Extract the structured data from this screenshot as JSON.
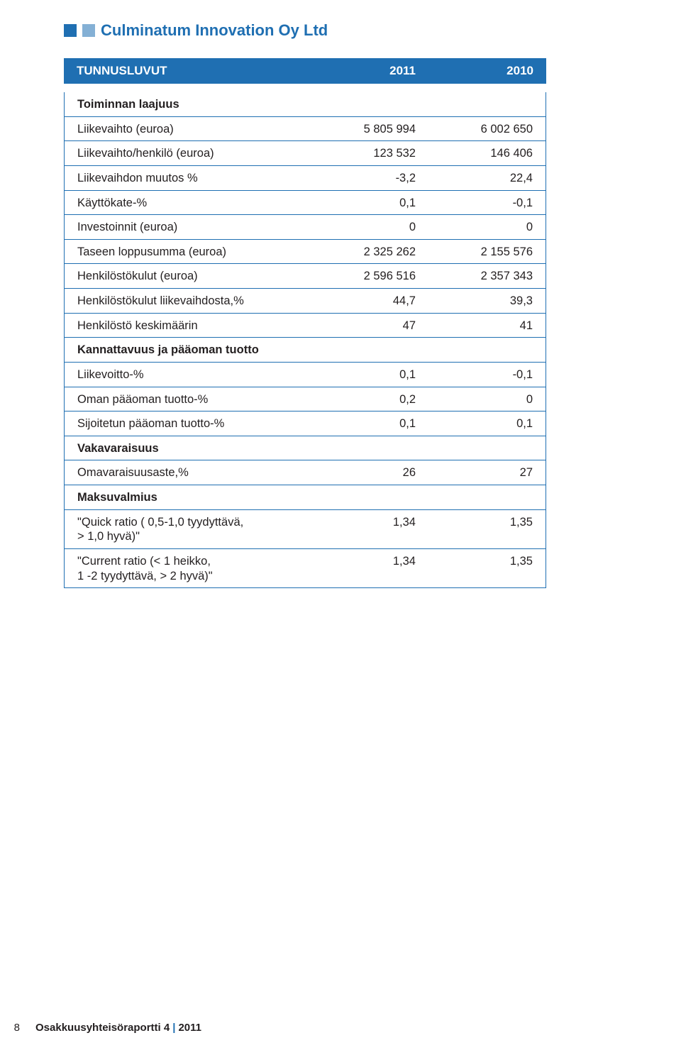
{
  "colors": {
    "brand_blue": "#1f6fb2",
    "text": "#231f20",
    "white": "#ffffff"
  },
  "title": "Culminatum Innovation Oy Ltd",
  "table": {
    "header": {
      "c0": "TUNNUSLUVUT",
      "c1": "2011",
      "c2": "2010"
    },
    "rows": [
      {
        "type": "section",
        "label": "Toiminnan laajuus"
      },
      {
        "type": "data",
        "label": "Liikevaihto (euroa)",
        "v1": "5 805 994",
        "v2": "6 002 650"
      },
      {
        "type": "data",
        "label": "Liikevaihto/henkilö (euroa)",
        "v1": "123 532",
        "v2": "146 406"
      },
      {
        "type": "data",
        "label": "Liikevaihdon muutos %",
        "v1": "-3,2",
        "v2": "22,4"
      },
      {
        "type": "data",
        "label": "Käyttökate-%",
        "v1": "0,1",
        "v2": "-0,1"
      },
      {
        "type": "data",
        "label": "Investoinnit (euroa)",
        "v1": "0",
        "v2": "0"
      },
      {
        "type": "data",
        "label": "Taseen loppusumma (euroa)",
        "v1": "2 325 262",
        "v2": "2 155 576"
      },
      {
        "type": "data",
        "label": "Henkilöstökulut (euroa)",
        "v1": "2 596 516",
        "v2": "2  357 343"
      },
      {
        "type": "data",
        "label": "Henkilöstökulut liikevaihdosta,%",
        "v1": "44,7",
        "v2": "39,3"
      },
      {
        "type": "data",
        "label": "Henkilöstö keskimäärin",
        "v1": "47",
        "v2": "41"
      },
      {
        "type": "section",
        "label": "Kannattavuus ja pääoman tuotto"
      },
      {
        "type": "data",
        "label": "Liikevoitto-%",
        "v1": "0,1",
        "v2": "-0,1"
      },
      {
        "type": "data",
        "label": "Oman pääoman tuotto-%",
        "v1": "0,2",
        "v2": "0"
      },
      {
        "type": "data",
        "label": "Sijoitetun pääoman tuotto-%",
        "v1": "0,1",
        "v2": "0,1"
      },
      {
        "type": "section",
        "label": "Vakavaraisuus"
      },
      {
        "type": "data",
        "label": "Omavaraisuusaste,%",
        "v1": "26",
        "v2": "27"
      },
      {
        "type": "section",
        "label": "Maksuvalmius"
      },
      {
        "type": "data",
        "label": "\"Quick ratio ( 0,5-1,0 tyydyttävä,\n> 1,0 hyvä)\"",
        "v1": "1,34",
        "v2": "1,35"
      },
      {
        "type": "data",
        "label": "\"Current ratio (< 1 heikko,\n1 -2 tyydyttävä, > 2 hyvä)\"",
        "v1": "1,34",
        "v2": "1,35"
      }
    ]
  },
  "footer": {
    "page_no": "8",
    "bold": "Osakkuusyhteisöraportti 4",
    "sep": "|",
    "year": "2011"
  }
}
